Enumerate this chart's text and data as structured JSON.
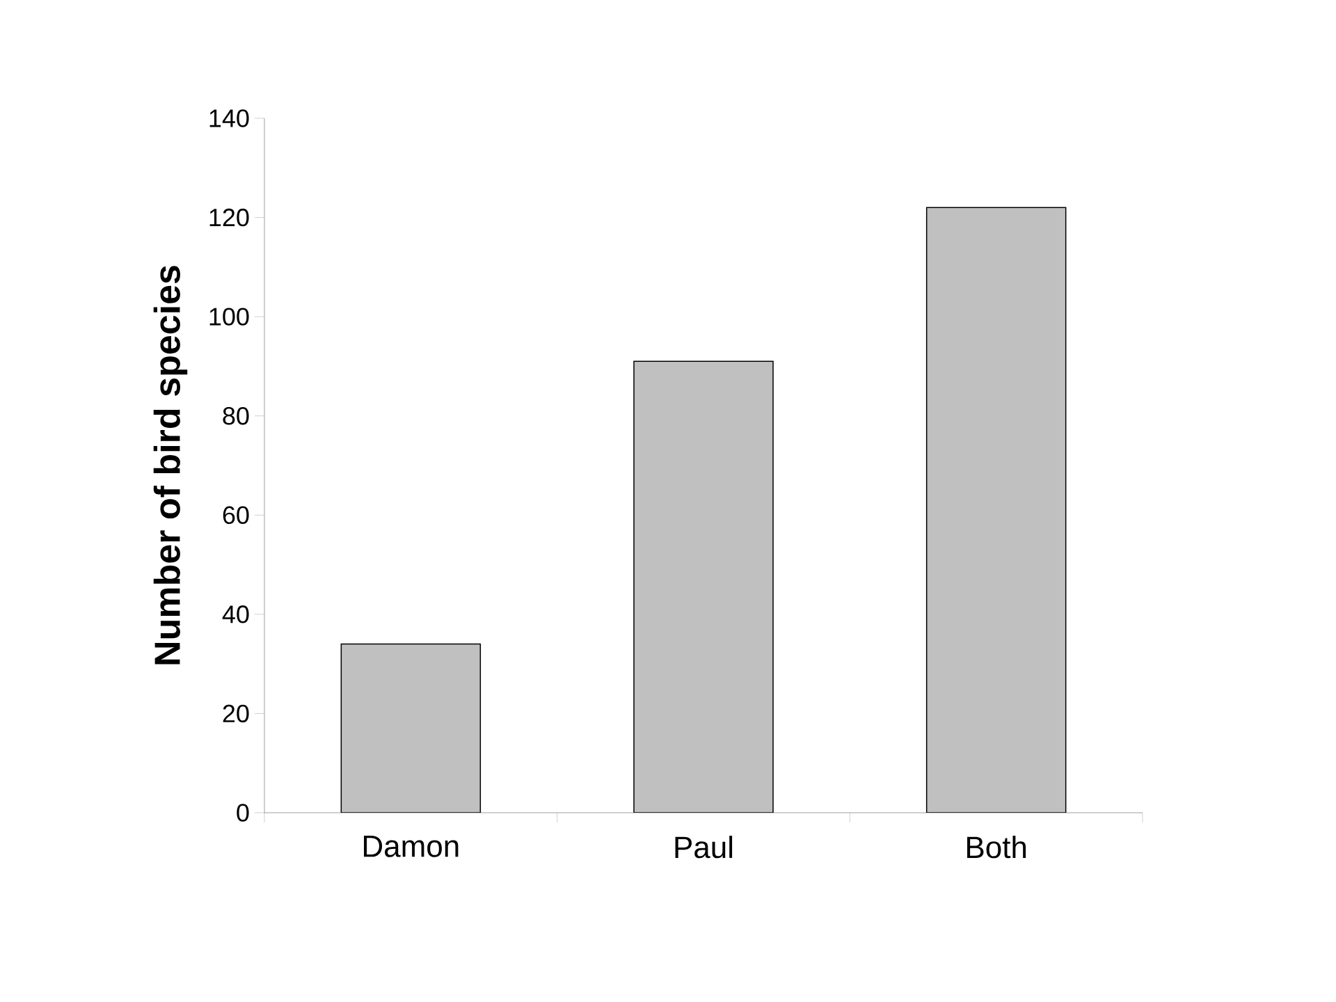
{
  "chart_data": {
    "type": "bar",
    "ylabel": "**Number of bird species**",
    "categories": [
      "Damon",
      "Paul",
      "Both"
    ],
    "values": [
      34,
      91,
      122
    ],
    "color": "#c0c0c0",
    "ylim": [
      0,
      140
    ],
    "yticks": [
      0,
      20,
      40,
      60,
      80,
      100,
      120,
      140
    ]
  }
}
